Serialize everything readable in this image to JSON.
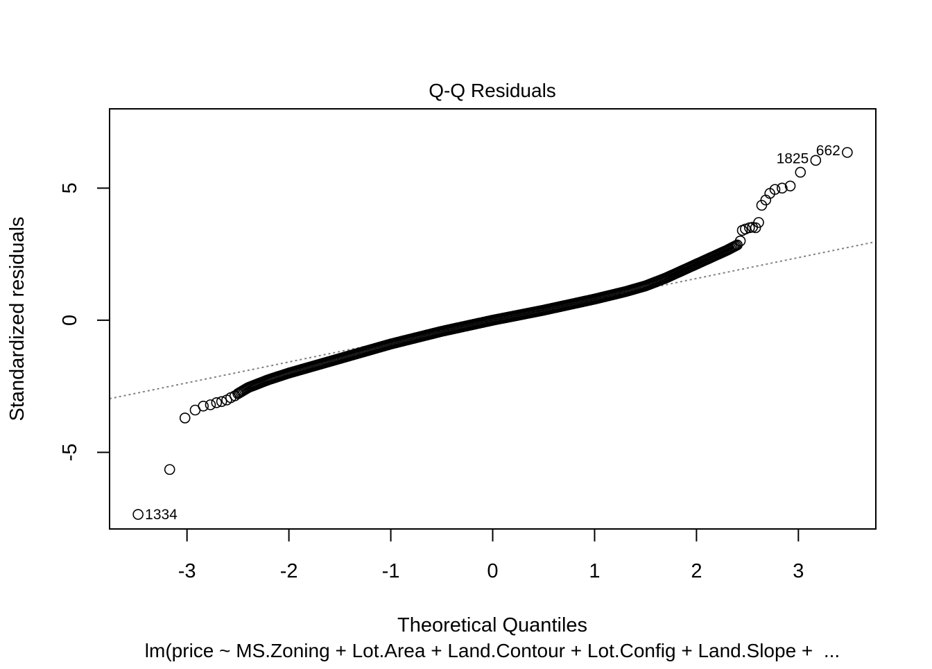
{
  "chart_data": {
    "type": "scatter",
    "title": "Q-Q Residuals",
    "xlabel": "Theoretical Quantiles",
    "ylabel": "Standardized residuals",
    "subtitle": "lm(price ~ MS.Zoning + Lot.Area + Land.Contour + Lot.Config + Land.Slope +  ...",
    "xlim": [
      -3.76,
      3.76
    ],
    "ylim": [
      -7.9,
      8.0
    ],
    "x_ticks": [
      {
        "value": -3,
        "label": "-3"
      },
      {
        "value": -2,
        "label": "-2"
      },
      {
        "value": -1,
        "label": "-1"
      },
      {
        "value": 0,
        "label": "0"
      },
      {
        "value": 1,
        "label": "1"
      },
      {
        "value": 2,
        "label": "2"
      },
      {
        "value": 3,
        "label": "3"
      }
    ],
    "y_ticks": [
      {
        "value": -5,
        "label": "-5"
      },
      {
        "value": 0,
        "label": "0"
      },
      {
        "value": 5,
        "label": "5"
      }
    ],
    "reference_line": {
      "slope": 0.79,
      "intercept": 0.0,
      "style": "dotted",
      "color": "#808080"
    },
    "bulk": {
      "x_range": [
        -2.5,
        2.4
      ],
      "count": 380,
      "knots": [
        [
          -2.5,
          -2.78
        ],
        [
          -2.4,
          -2.55
        ],
        [
          -2.2,
          -2.25
        ],
        [
          -2.0,
          -2.0
        ],
        [
          -1.5,
          -1.45
        ],
        [
          -1.0,
          -0.9
        ],
        [
          -0.5,
          -0.42
        ],
        [
          0.0,
          0.0
        ],
        [
          0.5,
          0.38
        ],
        [
          1.0,
          0.8
        ],
        [
          1.3,
          1.08
        ],
        [
          1.5,
          1.3
        ],
        [
          1.7,
          1.6
        ],
        [
          1.9,
          1.95
        ],
        [
          2.1,
          2.3
        ],
        [
          2.3,
          2.65
        ],
        [
          2.4,
          2.85
        ]
      ]
    },
    "tail_points": [
      {
        "x": -3.48,
        "y": -7.35,
        "label": "1334"
      },
      {
        "x": -3.17,
        "y": -5.65
      },
      {
        "x": -3.02,
        "y": -3.7
      },
      {
        "x": -2.92,
        "y": -3.4
      },
      {
        "x": -2.84,
        "y": -3.25
      },
      {
        "x": -2.77,
        "y": -3.2
      },
      {
        "x": -2.71,
        "y": -3.12
      },
      {
        "x": -2.66,
        "y": -3.08
      },
      {
        "x": -2.61,
        "y": -3.02
      },
      {
        "x": -2.57,
        "y": -2.93
      },
      {
        "x": -2.53,
        "y": -2.86
      },
      {
        "x": 2.43,
        "y": 3.0
      },
      {
        "x": 2.45,
        "y": 3.4
      },
      {
        "x": 2.48,
        "y": 3.45
      },
      {
        "x": 2.52,
        "y": 3.5
      },
      {
        "x": 2.55,
        "y": 3.52
      },
      {
        "x": 2.58,
        "y": 3.5
      },
      {
        "x": 2.61,
        "y": 3.7
      },
      {
        "x": 2.64,
        "y": 4.35
      },
      {
        "x": 2.68,
        "y": 4.55
      },
      {
        "x": 2.72,
        "y": 4.8
      },
      {
        "x": 2.77,
        "y": 4.95
      },
      {
        "x": 2.84,
        "y": 5.0
      },
      {
        "x": 2.92,
        "y": 5.08
      },
      {
        "x": 3.02,
        "y": 5.6
      },
      {
        "x": 3.17,
        "y": 6.05,
        "label": "1825"
      },
      {
        "x": 3.48,
        "y": 6.35,
        "label": "662"
      }
    ]
  }
}
